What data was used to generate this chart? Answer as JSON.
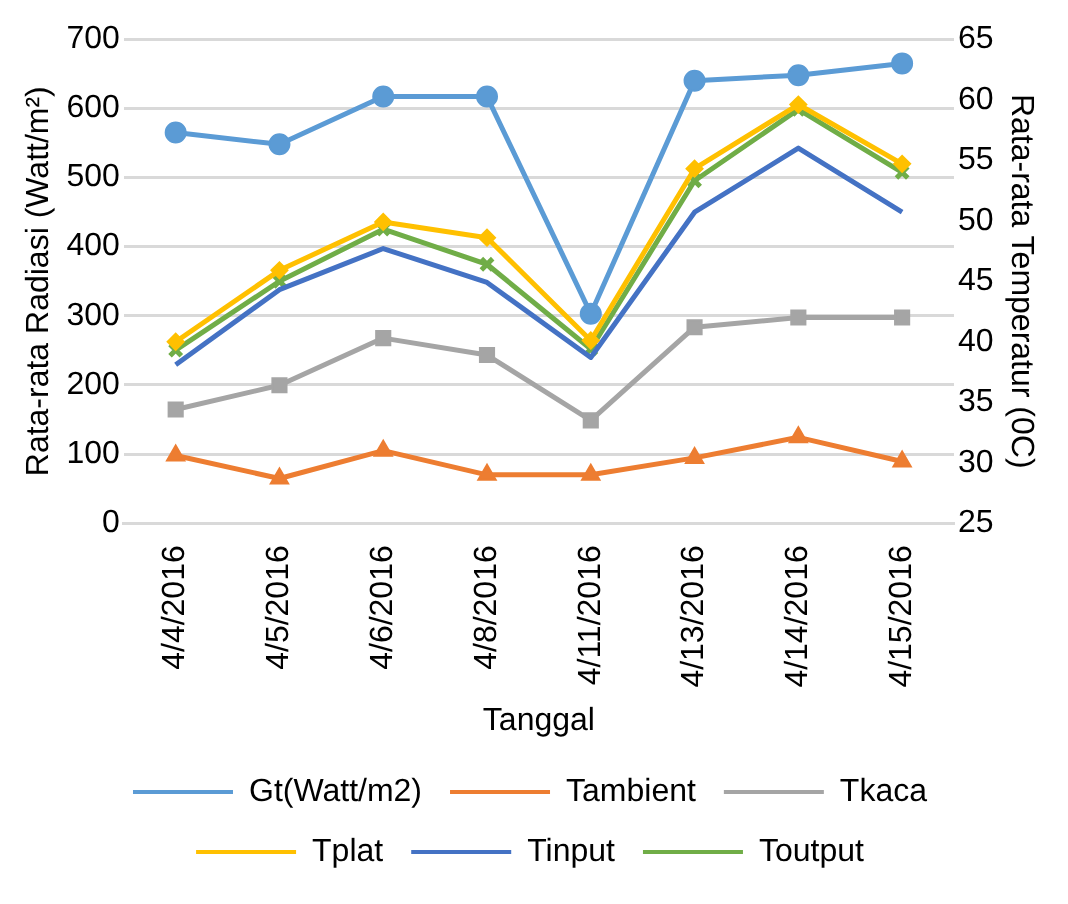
{
  "chart_data": {
    "type": "line",
    "xlabel": "Tanggal",
    "ylabel": "Rata-rata Radiasi (Watt/m²)",
    "y2label": "Rata-rata Temperatur (0C)",
    "categories": [
      "4/4/2016",
      "4/5/2016",
      "4/6/2016",
      "4/8/2016",
      "4/11/2016",
      "4/13/2016",
      "4/14/2016",
      "4/15/2016"
    ],
    "ylim": [
      0,
      700
    ],
    "yticks": [
      0,
      100,
      200,
      300,
      400,
      500,
      600,
      700
    ],
    "y2lim": [
      25,
      65
    ],
    "y2ticks": [
      25,
      30,
      35,
      40,
      45,
      50,
      55,
      60,
      65
    ],
    "grid": "y",
    "legend": "bottom",
    "series": [
      {
        "name": "Gt(Watt/m2)",
        "color": "#5b9bd5",
        "marker": "circle",
        "values": [
          565,
          548,
          617,
          617,
          303,
          640,
          648,
          665
        ]
      },
      {
        "name": "Tambient",
        "color": "#ed7d31",
        "marker": "triangle",
        "axis": "y2",
        "values": [
          30.6,
          28.7,
          31.0,
          29.0,
          29.0,
          30.4,
          32.1,
          30.1
        ]
      },
      {
        "name": "Tkaca",
        "color": "#a5a5a5",
        "marker": "square",
        "axis": "y2",
        "values": [
          34.4,
          36.4,
          40.3,
          38.9,
          33.5,
          41.2,
          42.0,
          42.0
        ]
      },
      {
        "name": "Tplat",
        "color": "#ffc000",
        "marker": "diamond",
        "axis": "y2",
        "values": [
          40.0,
          45.9,
          49.9,
          48.6,
          40.1,
          54.3,
          59.6,
          54.7
        ]
      },
      {
        "name": "Tinput",
        "color": "#4472c4",
        "marker": "none",
        "axis": "y2",
        "values": [
          38.1,
          44.3,
          47.7,
          44.9,
          38.7,
          50.7,
          56.0,
          50.7
        ]
      },
      {
        "name": "Toutput",
        "color": "#70ad47",
        "marker": "cross",
        "axis": "y2",
        "values": [
          39.3,
          45.0,
          49.3,
          46.4,
          39.4,
          53.3,
          59.2,
          54.0
        ]
      }
    ]
  }
}
